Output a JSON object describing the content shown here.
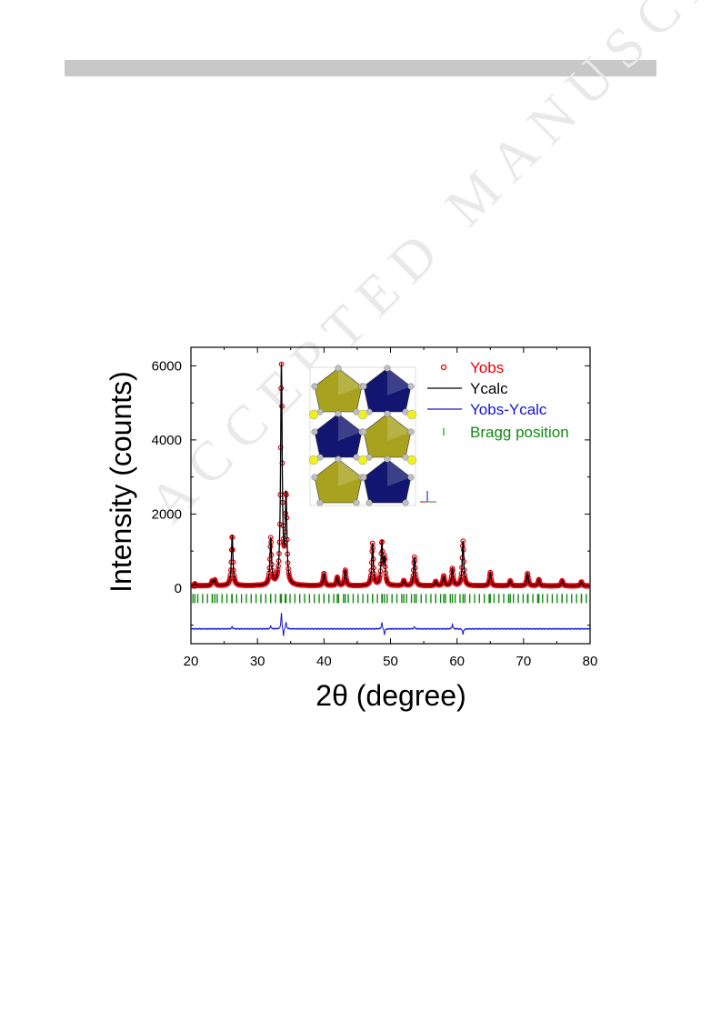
{
  "page": {
    "watermark": "ACCEPTED MANUSCRIPT"
  },
  "chart_data": {
    "type": "scatter",
    "title": "",
    "xlabel": "2θ (degree)",
    "ylabel": "Intensity (counts)",
    "xlim": [
      20,
      80
    ],
    "ylim": [
      -1500,
      6500
    ],
    "xticks": [
      20,
      30,
      40,
      50,
      60,
      70,
      80
    ],
    "yticks": [
      0,
      2000,
      4000,
      6000
    ],
    "grid": false,
    "legend_position": "top-right",
    "colors": {
      "yobs": "#e8000b",
      "ycalc": "#000000",
      "diff": "#1515d6",
      "bragg": "#138a13"
    },
    "series": [
      {
        "name": "Yobs",
        "style": "points"
      },
      {
        "name": "Ycalc",
        "style": "line"
      },
      {
        "name": "Yobs-Ycalc",
        "style": "line"
      },
      {
        "name": "Bragg position",
        "style": "ticks"
      }
    ],
    "background_level": 60,
    "peaks": [
      {
        "x": 20.6,
        "y": 120
      },
      {
        "x": 23.2,
        "y": 180
      },
      {
        "x": 23.6,
        "y": 210
      },
      {
        "x": 26.2,
        "y": 1430
      },
      {
        "x": 32.0,
        "y": 1320
      },
      {
        "x": 33.6,
        "y": 5970
      },
      {
        "x": 34.3,
        "y": 2400
      },
      {
        "x": 40.0,
        "y": 400
      },
      {
        "x": 42.0,
        "y": 290
      },
      {
        "x": 43.2,
        "y": 480
      },
      {
        "x": 47.3,
        "y": 1200
      },
      {
        "x": 48.7,
        "y": 1200
      },
      {
        "x": 49.1,
        "y": 750
      },
      {
        "x": 52.0,
        "y": 200
      },
      {
        "x": 53.6,
        "y": 840
      },
      {
        "x": 56.8,
        "y": 180
      },
      {
        "x": 58.0,
        "y": 330
      },
      {
        "x": 59.3,
        "y": 520
      },
      {
        "x": 60.9,
        "y": 1270
      },
      {
        "x": 65.0,
        "y": 420
      },
      {
        "x": 68.0,
        "y": 200
      },
      {
        "x": 70.6,
        "y": 400
      },
      {
        "x": 72.3,
        "y": 230
      },
      {
        "x": 75.8,
        "y": 200
      },
      {
        "x": 78.7,
        "y": 170
      }
    ],
    "bragg_level": -280,
    "difference_baseline": -1100,
    "difference_features": [
      {
        "x": 26.2,
        "y": -1040
      },
      {
        "x": 32.0,
        "y": -1020
      },
      {
        "x": 33.6,
        "y": -640
      },
      {
        "x": 33.9,
        "y": -1320
      },
      {
        "x": 34.3,
        "y": -920
      },
      {
        "x": 48.7,
        "y": -920
      },
      {
        "x": 49.1,
        "y": -1260
      },
      {
        "x": 53.6,
        "y": -1040
      },
      {
        "x": 59.3,
        "y": -980
      },
      {
        "x": 60.9,
        "y": -1250
      }
    ]
  },
  "inset": {
    "description_icon": "crystal-structure-inset",
    "colors": {
      "octahedron_a": "#a8a21e",
      "octahedron_b": "#121670",
      "cation": "#f0f020",
      "anion": "#bfbfbf"
    }
  }
}
